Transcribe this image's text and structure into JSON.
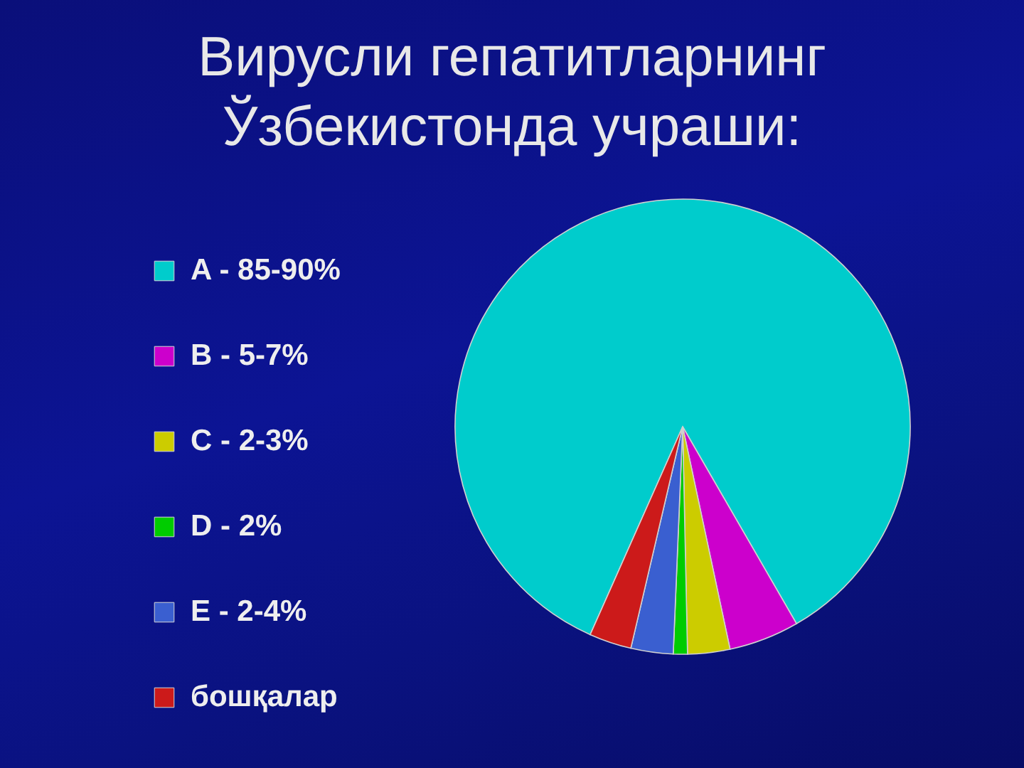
{
  "chart_data": {
    "type": "pie",
    "title": "Вирусли гепатитларнинг Ўзбекистонда учраши:",
    "categories": [
      "A - 85-90%",
      "B - 5-7%",
      "C - 2-3%",
      "D - 2%",
      "E - 2-4%",
      "бошқалар"
    ],
    "values": [
      85,
      5,
      3,
      1,
      3,
      3
    ],
    "colors": [
      "#00cccc",
      "#cc00cc",
      "#cccc00",
      "#00cc00",
      "#3a5fd0",
      "#cc1a1a"
    ],
    "legend": "left"
  }
}
